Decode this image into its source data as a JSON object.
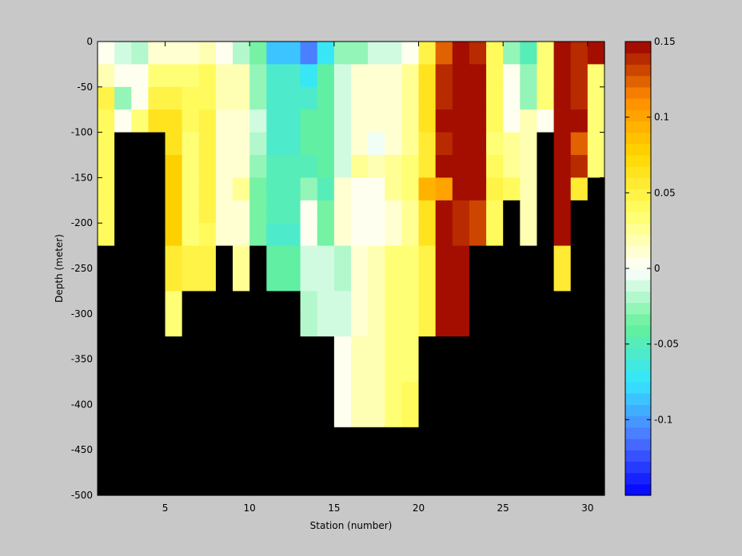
{
  "chart_data": {
    "type": "heatmap",
    "xlabel": "Station (number)",
    "ylabel": "Depth (meter)",
    "xlim": [
      1,
      31
    ],
    "ylim": [
      -500,
      0
    ],
    "x_ticks": [
      5,
      10,
      15,
      20,
      25,
      30
    ],
    "y_ticks": [
      0,
      -50,
      -100,
      -150,
      -200,
      -250,
      -300,
      -350,
      -400,
      -450,
      -500
    ],
    "stations": [
      1,
      2,
      3,
      4,
      5,
      6,
      7,
      8,
      9,
      10,
      11,
      12,
      13,
      14,
      15,
      16,
      17,
      18,
      19,
      20,
      21,
      22,
      23,
      24,
      25,
      26,
      27,
      28,
      29,
      30
    ],
    "depths": [
      0,
      -25,
      -50,
      -75,
      -100,
      -125,
      -150,
      -175,
      -200,
      -225,
      -250,
      -275,
      -300,
      -325,
      -350,
      -375,
      -400,
      -425,
      -450,
      -475
    ],
    "no_data_color": "#000000",
    "colorbar": {
      "clim": [
        -0.15,
        0.15
      ],
      "ticks": [
        0.15,
        0.1,
        0.05,
        0,
        -0.05,
        -0.1
      ],
      "tick_labels": [
        "0.15",
        "0.1",
        "0.05",
        "0",
        "-0.05",
        "-0.1"
      ],
      "colors": [
        "#0000ff",
        "#4d73ff",
        "#33e6ff",
        "#66f099",
        "#ffffff",
        "#ffff66",
        "#ffd700",
        "#ff8c00",
        "#990000"
      ],
      "levels": 40
    },
    "values": [
      [
        0.005,
        -0.01,
        -0.02,
        0.01,
        0.01,
        0.01,
        0.02,
        0.005,
        -0.02,
        -0.035,
        -0.09,
        -0.09,
        -0.11,
        -0.075,
        -0.03,
        -0.025,
        -0.01,
        -0.015,
        0.005,
        0.05,
        0.12,
        0.15,
        0.135,
        0.04,
        -0.025,
        -0.05,
        0.03,
        0.15,
        0.135,
        0.15
      ],
      [
        0.02,
        0.005,
        0.005,
        0.035,
        0.035,
        0.03,
        0.04,
        0.02,
        0.02,
        -0.025,
        -0.06,
        -0.06,
        -0.07,
        -0.045,
        -0.01,
        0.01,
        0.015,
        0.015,
        0.025,
        0.06,
        0.14,
        0.15,
        0.15,
        0.04,
        0.005,
        -0.025,
        0.03,
        0.15,
        0.14,
        0.03
      ],
      [
        0.05,
        -0.03,
        0.005,
        0.045,
        0.045,
        0.04,
        0.04,
        0.02,
        0.02,
        -0.025,
        -0.06,
        -0.06,
        -0.06,
        -0.045,
        -0.01,
        0.015,
        0.015,
        0.015,
        0.025,
        0.06,
        0.14,
        0.15,
        0.15,
        0.04,
        0.005,
        -0.025,
        0.035,
        0.15,
        0.14,
        0.03
      ],
      [
        0.04,
        0.0,
        0.03,
        0.06,
        0.06,
        0.04,
        0.045,
        0.015,
        0.015,
        -0.015,
        -0.06,
        -0.06,
        -0.045,
        -0.04,
        -0.01,
        0.015,
        0.015,
        0.015,
        0.025,
        0.06,
        0.15,
        0.15,
        0.15,
        0.04,
        0.005,
        0.02,
        0.0,
        0.15,
        0.15,
        0.03
      ],
      [
        0.04,
        null,
        null,
        null,
        0.065,
        0.035,
        0.045,
        0.015,
        0.015,
        -0.02,
        -0.06,
        -0.06,
        -0.04,
        -0.04,
        -0.01,
        0.015,
        -0.005,
        0.015,
        0.025,
        0.055,
        0.14,
        0.15,
        0.15,
        0.035,
        0.025,
        0.02,
        null,
        0.15,
        0.12,
        0.03
      ],
      [
        0.04,
        null,
        null,
        null,
        0.075,
        0.035,
        0.045,
        0.015,
        0.015,
        -0.025,
        -0.05,
        -0.05,
        -0.05,
        -0.04,
        -0.01,
        0.025,
        0.02,
        0.025,
        0.03,
        0.055,
        0.145,
        0.15,
        0.15,
        0.04,
        0.025,
        0.02,
        null,
        0.15,
        0.14,
        0.03
      ],
      [
        0.04,
        null,
        null,
        null,
        0.075,
        0.035,
        0.045,
        0.015,
        0.025,
        -0.035,
        -0.05,
        -0.05,
        -0.025,
        -0.05,
        0.015,
        0.005,
        0.005,
        0.025,
        0.03,
        0.09,
        0.1,
        0.15,
        0.15,
        0.05,
        0.04,
        0.02,
        null,
        0.15,
        0.055,
        null
      ],
      [
        0.04,
        null,
        null,
        null,
        0.08,
        0.035,
        0.045,
        0.01,
        0.01,
        -0.035,
        -0.05,
        -0.05,
        0.0,
        -0.035,
        0.01,
        0.0,
        0.005,
        0.015,
        0.025,
        0.06,
        0.145,
        0.14,
        0.13,
        0.04,
        null,
        0.02,
        null,
        0.15,
        null,
        null
      ],
      [
        0.04,
        null,
        null,
        null,
        0.08,
        0.035,
        0.04,
        0.01,
        0.01,
        -0.035,
        -0.06,
        -0.06,
        0.0,
        -0.035,
        0.01,
        0.0,
        0.005,
        0.015,
        0.025,
        0.06,
        0.145,
        0.14,
        0.13,
        0.04,
        null,
        0.02,
        null,
        0.15,
        null,
        null
      ],
      [
        null,
        null,
        null,
        null,
        0.055,
        0.045,
        0.045,
        null,
        0.025,
        null,
        -0.04,
        -0.04,
        -0.015,
        -0.015,
        -0.02,
        0.01,
        0.02,
        0.03,
        0.035,
        0.045,
        0.15,
        0.15,
        null,
        null,
        null,
        null,
        null,
        0.055,
        null,
        null
      ],
      [
        null,
        null,
        null,
        null,
        0.055,
        0.045,
        0.045,
        null,
        0.025,
        null,
        -0.04,
        -0.04,
        -0.015,
        -0.015,
        -0.02,
        0.01,
        0.02,
        0.03,
        0.035,
        0.045,
        0.15,
        0.15,
        null,
        null,
        null,
        null,
        null,
        0.055,
        null,
        null
      ],
      [
        null,
        null,
        null,
        null,
        0.03,
        null,
        null,
        null,
        null,
        null,
        null,
        null,
        -0.02,
        -0.01,
        -0.015,
        0.01,
        0.02,
        0.03,
        0.035,
        0.045,
        0.15,
        0.15,
        null,
        null,
        null,
        null,
        null,
        null,
        null,
        null
      ],
      [
        null,
        null,
        null,
        null,
        0.03,
        null,
        null,
        null,
        null,
        null,
        null,
        null,
        -0.02,
        -0.01,
        -0.015,
        0.01,
        0.02,
        0.03,
        0.035,
        0.045,
        0.15,
        0.15,
        null,
        null,
        null,
        null,
        null,
        null,
        null,
        null
      ],
      [
        null,
        null,
        null,
        null,
        null,
        null,
        null,
        null,
        null,
        null,
        null,
        null,
        null,
        null,
        0.005,
        0.02,
        0.02,
        0.03,
        0.035,
        null,
        null,
        null,
        null,
        null,
        null,
        null,
        null,
        null,
        null,
        null
      ],
      [
        null,
        null,
        null,
        null,
        null,
        null,
        null,
        null,
        null,
        null,
        null,
        null,
        null,
        null,
        0.005,
        0.02,
        0.02,
        0.03,
        0.035,
        null,
        null,
        null,
        null,
        null,
        null,
        null,
        null,
        null,
        null,
        null
      ],
      [
        null,
        null,
        null,
        null,
        null,
        null,
        null,
        null,
        null,
        null,
        null,
        null,
        null,
        null,
        0.005,
        0.02,
        0.02,
        0.03,
        0.04,
        null,
        null,
        null,
        null,
        null,
        null,
        null,
        null,
        null,
        null,
        null
      ],
      [
        null,
        null,
        null,
        null,
        null,
        null,
        null,
        null,
        null,
        null,
        null,
        null,
        null,
        null,
        0.005,
        0.02,
        0.02,
        0.03,
        0.04,
        null,
        null,
        null,
        null,
        null,
        null,
        null,
        null,
        null,
        null,
        null
      ],
      [
        null,
        null,
        null,
        null,
        null,
        null,
        null,
        null,
        null,
        null,
        null,
        null,
        null,
        null,
        null,
        null,
        null,
        null,
        null,
        null,
        null,
        null,
        null,
        null,
        null,
        null,
        null,
        null,
        null,
        null
      ],
      [
        null,
        null,
        null,
        null,
        null,
        null,
        null,
        null,
        null,
        null,
        null,
        null,
        null,
        null,
        null,
        null,
        null,
        null,
        null,
        null,
        null,
        null,
        null,
        null,
        null,
        null,
        null,
        null,
        null,
        null
      ],
      [
        null,
        null,
        null,
        null,
        null,
        null,
        null,
        null,
        null,
        null,
        null,
        null,
        null,
        null,
        null,
        null,
        null,
        null,
        null,
        null,
        null,
        null,
        null,
        null,
        null,
        null,
        null,
        null,
        null,
        null
      ]
    ]
  }
}
